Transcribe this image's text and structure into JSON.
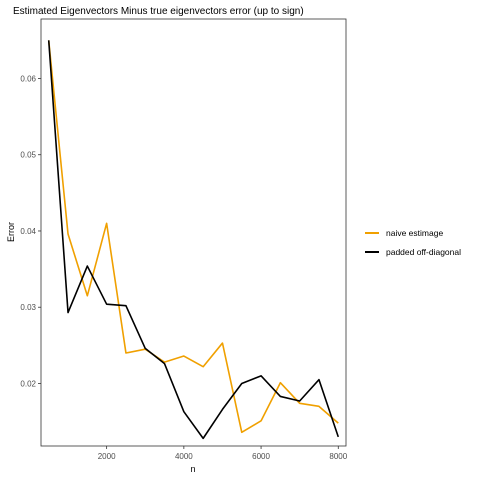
{
  "chart_data": {
    "type": "line",
    "title": "Estimated Eigenvectors Minus true eigenvectors error (up to sign)",
    "xlabel": "n",
    "ylabel": "Error",
    "xlim": [
      300,
      8200
    ],
    "ylim": [
      0.0118,
      0.0678
    ],
    "xticks": [
      2000,
      4000,
      6000,
      8000
    ],
    "yticks": [
      0.02,
      0.03,
      0.04,
      0.05,
      0.06
    ],
    "xtick_labels": [
      "2000",
      "4000",
      "6000",
      "8000"
    ],
    "ytick_labels": [
      "0.02",
      "0.03",
      "0.04",
      "0.05",
      "0.06"
    ],
    "grid": false,
    "legend_position": "right",
    "x": [
      500,
      1000,
      1500,
      2000,
      2500,
      3000,
      3500,
      4000,
      4500,
      5000,
      5500,
      6000,
      6500,
      7000,
      7500,
      8000
    ],
    "series": [
      {
        "name": "naive estimage",
        "color": "#F0A000",
        "values": [
          0.065,
          0.0396,
          0.0315,
          0.041,
          0.024,
          0.0245,
          0.0228,
          0.0236,
          0.0222,
          0.0253,
          0.0136,
          0.0151,
          0.0201,
          0.0174,
          0.017,
          0.0148
        ]
      },
      {
        "name": "padded off-diagonal",
        "color": "#000000",
        "values": [
          0.065,
          0.0293,
          0.0354,
          0.0304,
          0.0302,
          0.0246,
          0.0226,
          0.0163,
          0.0128,
          0.0166,
          0.02,
          0.021,
          0.0183,
          0.0177,
          0.0205,
          0.013
        ]
      }
    ]
  }
}
